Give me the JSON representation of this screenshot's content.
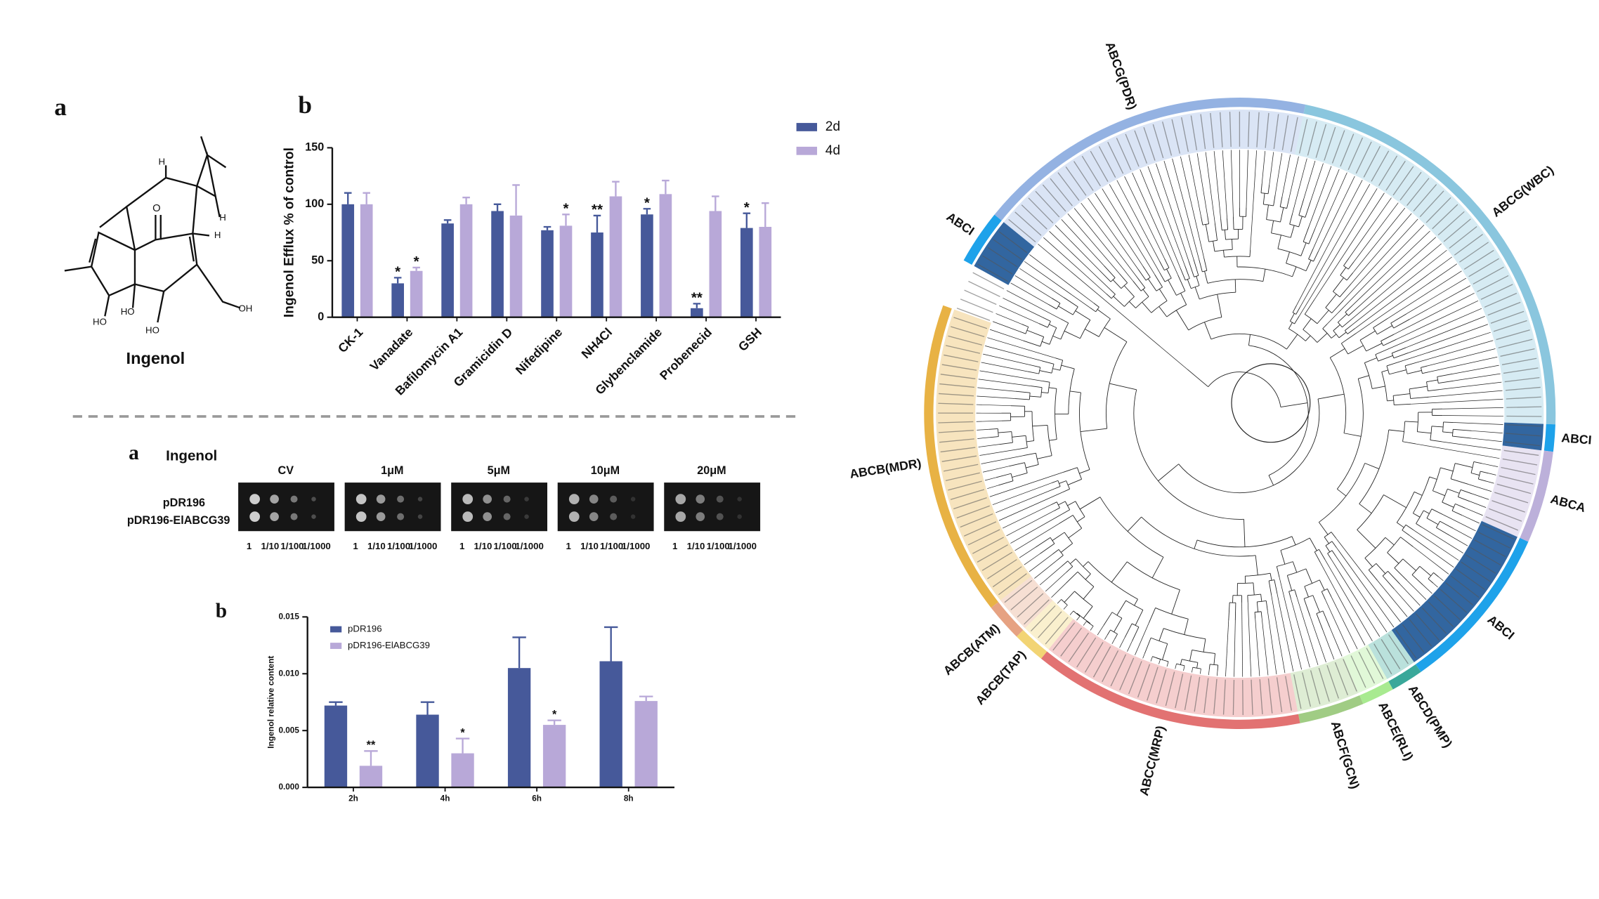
{
  "panel_labels": {
    "structure": "a",
    "efflux": "b",
    "spot": "a",
    "content": "b"
  },
  "structure": {
    "name": "Ingenol",
    "atoms": [
      "H",
      "O",
      "H",
      "H",
      "HO",
      "HO",
      "HO",
      "OH"
    ]
  },
  "spot_assay": {
    "compound": "Ingenol",
    "conditions": [
      "CV",
      "1μM",
      "5μM",
      "10μM",
      "20μM"
    ],
    "strains": [
      "pDR196",
      "pDR196-ElABCG39"
    ],
    "dilutions": [
      "1",
      "1/10",
      "1/100",
      "1/1000"
    ]
  },
  "chart_data": [
    {
      "type": "bar",
      "ylabel": "Ingenol Efflux % of control",
      "categories": [
        "CK-1",
        "Vanadate",
        "Bafilomycin A1",
        "Gramicidin D",
        "Nifedipine",
        "NH4Cl",
        "Glybenclamide",
        "Probenecid",
        "GSH"
      ],
      "series": [
        {
          "name": "2d",
          "color": "#46599a",
          "values": [
            100,
            30,
            83,
            94,
            77,
            75,
            91,
            8,
            79
          ],
          "errors": [
            10,
            5,
            3,
            6,
            3,
            15,
            5,
            4,
            13
          ],
          "significance": [
            null,
            "*",
            null,
            null,
            null,
            "**",
            "*",
            "**",
            "*"
          ]
        },
        {
          "name": "4d",
          "color": "#b8a8d8",
          "values": [
            100,
            41,
            100,
            90,
            81,
            107,
            109,
            94,
            80
          ],
          "errors": [
            10,
            3,
            6,
            27,
            10,
            13,
            12,
            13,
            21
          ],
          "significance": [
            null,
            "*",
            null,
            null,
            "*",
            null,
            null,
            null,
            null
          ]
        }
      ],
      "ylim": [
        0,
        150
      ],
      "yticks": [
        0,
        50,
        100,
        150
      ],
      "legend": "upper right"
    },
    {
      "type": "bar",
      "ylabel": "Ingenol relative content",
      "categories": [
        "2h",
        "4h",
        "6h",
        "8h"
      ],
      "series": [
        {
          "name": "pDR196",
          "color": "#46599a",
          "values": [
            0.0072,
            0.0064,
            0.0105,
            0.0111
          ],
          "errors": [
            0.0003,
            0.0011,
            0.0027,
            0.003
          ],
          "significance": [
            null,
            null,
            null,
            null
          ]
        },
        {
          "name": "pDR196-ElABCG39",
          "color": "#b8a8d8",
          "values": [
            0.0019,
            0.003,
            0.0055,
            0.0076
          ],
          "errors": [
            0.0013,
            0.0013,
            0.0004,
            0.0004
          ],
          "significance": [
            "**",
            "*",
            "*",
            null
          ]
        }
      ],
      "ylim": [
        0,
        0.015
      ],
      "yticks": [
        {
          "value": 0,
          "label": "0.000"
        },
        {
          "value": 0.005,
          "label": "0.005"
        },
        {
          "value": 0.01,
          "label": "0.010"
        },
        {
          "value": 0.015,
          "label": "0.015"
        }
      ],
      "legend": "upper left"
    }
  ],
  "tree": {
    "clades": [
      {
        "label": "ABCG(PDR)",
        "color": "#94b2e2"
      },
      {
        "label": "ABCG(WBC)",
        "color": "#8ac6de"
      },
      {
        "label": "ABCI",
        "color": "#1ea2ea"
      },
      {
        "label": "ABCA",
        "color": "#bcb0da"
      },
      {
        "label": "ABCI",
        "color": "#1ea2ea"
      },
      {
        "label": "ABCD(PMP)",
        "color": "#3aa89a"
      },
      {
        "label": "ABCE(RLI)",
        "color": "#a8ea90"
      },
      {
        "label": "ABCF(GCN)",
        "color": "#a0cc84"
      },
      {
        "label": "ABCC(MRP)",
        "color": "#e27272"
      },
      {
        "label": "ABCB(TAP)",
        "color": "#f2d474"
      },
      {
        "label": "ABCB(ATM)",
        "color": "#e6a282"
      },
      {
        "label": "ABCB(MDR)",
        "color": "#e8b244"
      },
      {
        "label": "ABCI",
        "color": "#1ea2ea"
      }
    ]
  }
}
